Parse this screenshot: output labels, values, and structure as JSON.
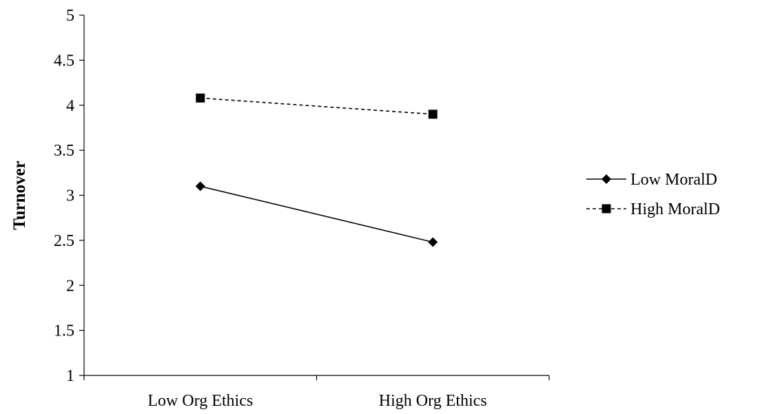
{
  "chart_data": {
    "type": "line",
    "title": "",
    "xlabel": "",
    "ylabel": "Turnover",
    "categories": [
      "Low Org Ethics",
      "High Org Ethics"
    ],
    "ylim": [
      1,
      5
    ],
    "yticks": [
      1,
      1.5,
      2,
      2.5,
      3,
      3.5,
      4,
      4.5,
      5
    ],
    "ytick_labels": [
      "1",
      "1.5",
      "2",
      "2.5",
      "3",
      "3.5",
      "4",
      "4.5",
      "5"
    ],
    "grid": false,
    "legend_position": "right",
    "series": [
      {
        "name": "Low MoralD",
        "values": [
          3.1,
          2.48
        ],
        "marker": "diamond",
        "line_style": "solid",
        "color": "#000000"
      },
      {
        "name": "High MoralD",
        "values": [
          4.08,
          3.9
        ],
        "marker": "square",
        "line_style": "dashed",
        "color": "#000000"
      }
    ]
  }
}
